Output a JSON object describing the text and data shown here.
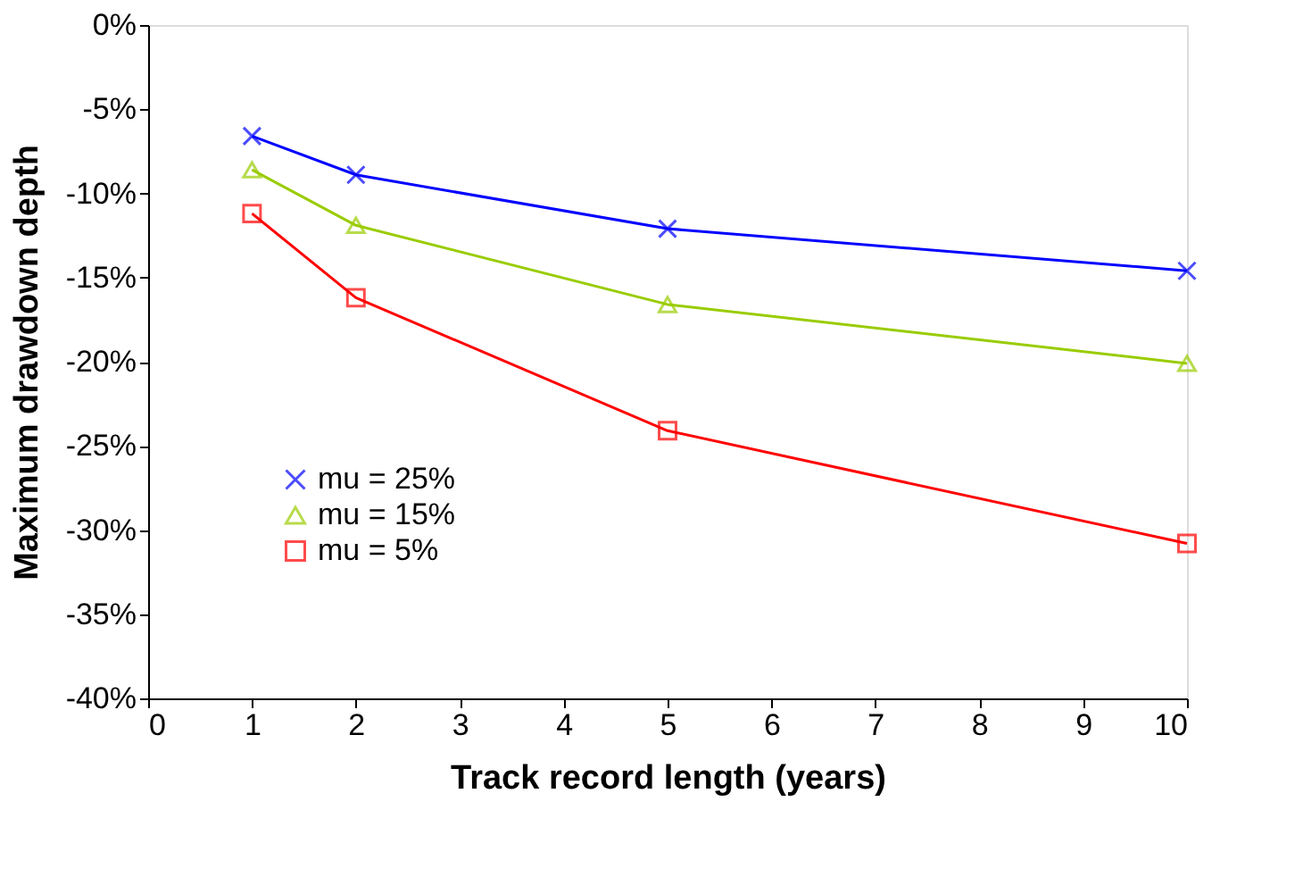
{
  "chart_data": {
    "type": "line",
    "xlabel": "Track record length (years)",
    "ylabel": "Maximum drawdown depth",
    "x": [
      1,
      2,
      5,
      10
    ],
    "series": [
      {
        "name": "mu = 25%",
        "color": "#0000ff",
        "marker": "cross",
        "values": [
          -6.6,
          -8.9,
          -12.1,
          -14.6
        ]
      },
      {
        "name": "mu = 15%",
        "color": "#99cc00",
        "marker": "triangle",
        "values": [
          -8.6,
          -11.9,
          -16.6,
          -20.1
        ]
      },
      {
        "name": "mu = 5%",
        "color": "#ff0000",
        "marker": "square",
        "values": [
          -11.2,
          -16.2,
          -24.1,
          -30.8
        ]
      }
    ],
    "xlim": [
      0,
      10
    ],
    "xticks": [
      0,
      1,
      2,
      3,
      4,
      5,
      6,
      7,
      8,
      9,
      10
    ],
    "ylim": [
      -40,
      0
    ],
    "yticks": [
      {
        "value": 0,
        "label": "0%"
      },
      {
        "value": -5,
        "label": "-5%"
      },
      {
        "value": -10,
        "label": "-10%"
      },
      {
        "value": -15,
        "label": "-15%"
      },
      {
        "value": -20,
        "label": "-20%"
      },
      {
        "value": -25,
        "label": "-25%"
      },
      {
        "value": -30,
        "label": "-30%"
      },
      {
        "value": -35,
        "label": "-35%"
      },
      {
        "value": -40,
        "label": "-40%"
      }
    ],
    "grid": false,
    "legend": "bottom left",
    "line_style": "solid"
  }
}
